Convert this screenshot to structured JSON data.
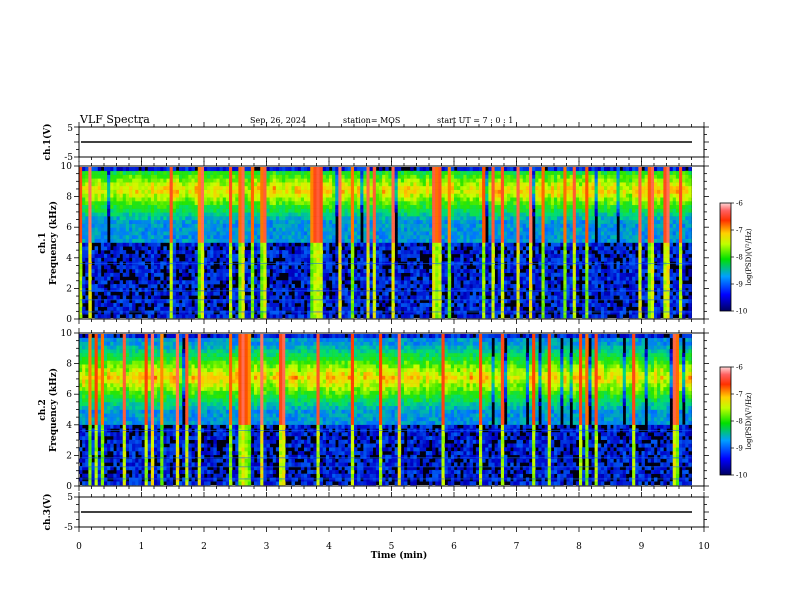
{
  "header": {
    "title": "VLF Spectra",
    "date": "Sep. 26, 2024",
    "station": "station= MOS",
    "start": "start  UT =   7 : 0  : 1"
  },
  "chart_data": [
    {
      "id": "ch1-waveform",
      "type": "line",
      "ylabel": "ch.1(V)",
      "ylim": [
        -5,
        5
      ],
      "y_ticks": [
        "5",
        "-5"
      ],
      "baseline": 0
    },
    {
      "id": "ch1-spectrogram",
      "type": "heatmap",
      "ylabel_line1": "ch.1",
      "ylabel_line2": "Frequency (kHz)",
      "ylim": [
        0,
        10
      ],
      "y_ticks": [
        "0",
        "2",
        "4",
        "6",
        "8",
        "10"
      ],
      "xlim": [
        0,
        10
      ],
      "data_end_min": 9.8,
      "emission_band_khz": [
        5,
        9.7
      ],
      "peak_band_khz": [
        7.5,
        9.2
      ],
      "colorbar": {
        "label": "log(PSD)(V²/Hz)",
        "range": [
          -10,
          -6
        ],
        "ticks": [
          "-6",
          "-7",
          "-8",
          "-9",
          "-10"
        ]
      }
    },
    {
      "id": "ch2-spectrogram",
      "type": "heatmap",
      "ylabel_line1": "ch.2",
      "ylabel_line2": "Frequency (kHz)",
      "ylim": [
        0,
        10
      ],
      "y_ticks": [
        "0",
        "2",
        "4",
        "6",
        "8",
        "10"
      ],
      "xlim": [
        0,
        10
      ],
      "data_end_min": 9.8,
      "emission_band_khz": [
        4,
        9.5
      ],
      "peak_band_khz": [
        6,
        8
      ],
      "colorbar": {
        "label": "log(PSD)(V²/Hz)",
        "range": [
          -10,
          -6
        ],
        "ticks": [
          "-6",
          "-7",
          "-8",
          "-9",
          "-10"
        ]
      }
    },
    {
      "id": "ch3-waveform",
      "type": "line",
      "ylabel": "ch.3(V)",
      "ylim": [
        -5,
        5
      ],
      "y_ticks": [
        "5",
        "-5"
      ],
      "baseline": 0
    }
  ],
  "x_axis": {
    "label": "Time (min)",
    "range": [
      0,
      10
    ],
    "ticks": [
      "0",
      "1",
      "2",
      "3",
      "4",
      "5",
      "6",
      "7",
      "8",
      "9",
      "10"
    ]
  },
  "colors": {
    "background": "#000000",
    "axis": "#000000"
  }
}
